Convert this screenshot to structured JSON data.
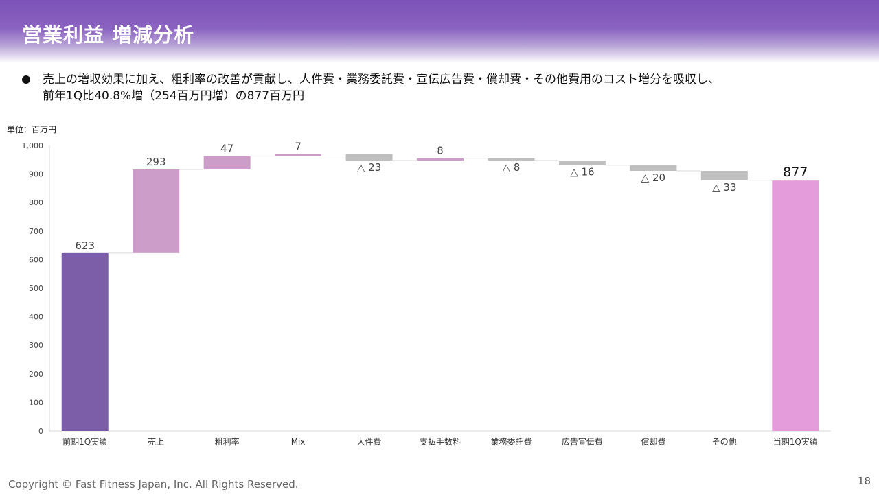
{
  "header": {
    "title": "営業利益 増減分析"
  },
  "bullet": {
    "line1": "売上の増収効果に加え、粗利率の改善が貢献し、人件費・業務委託費・宣伝広告費・償却費・その他費用のコスト増分を吸収し、",
    "line2": "前年1Q比40.8%増（254百万円増）の877百万円"
  },
  "unit_label": "単位：百万円",
  "footer": {
    "copyright": "Copyright © Fast Fitness Japan, Inc. All Rights Reserved.",
    "page_number": "18"
  },
  "colors": {
    "total_start": "#7b5ea7",
    "increase": "#cc9dc8",
    "decrease": "#bfbfbf",
    "total_end": "#e59cdb"
  },
  "chart_data": {
    "type": "bar",
    "subtype": "waterfall",
    "ylim": [
      0,
      1000
    ],
    "yticks": [
      0,
      100,
      200,
      300,
      400,
      500,
      600,
      700,
      800,
      900,
      1000
    ],
    "ytick_labels": [
      "0",
      "100",
      "200",
      "300",
      "400",
      "500",
      "600",
      "700",
      "800",
      "900",
      "1,000"
    ],
    "categories": [
      "前期1Q実績",
      "売上",
      "粗利率",
      "Mix",
      "人件費",
      "支払手数料",
      "業務委託費",
      "広告宣伝費",
      "償却費",
      "その他",
      "当期1Q実績"
    ],
    "values": [
      623,
      293,
      47,
      7,
      -23,
      8,
      -8,
      -16,
      -20,
      -33,
      877
    ],
    "kinds": [
      "total",
      "delta",
      "delta",
      "delta",
      "delta",
      "delta",
      "delta",
      "delta",
      "delta",
      "delta",
      "total"
    ],
    "data_labels": [
      "623",
      "293",
      "47",
      "7",
      "△ 23",
      "8",
      "△ 8",
      "△ 16",
      "△ 20",
      "△ 33",
      "877"
    ]
  }
}
